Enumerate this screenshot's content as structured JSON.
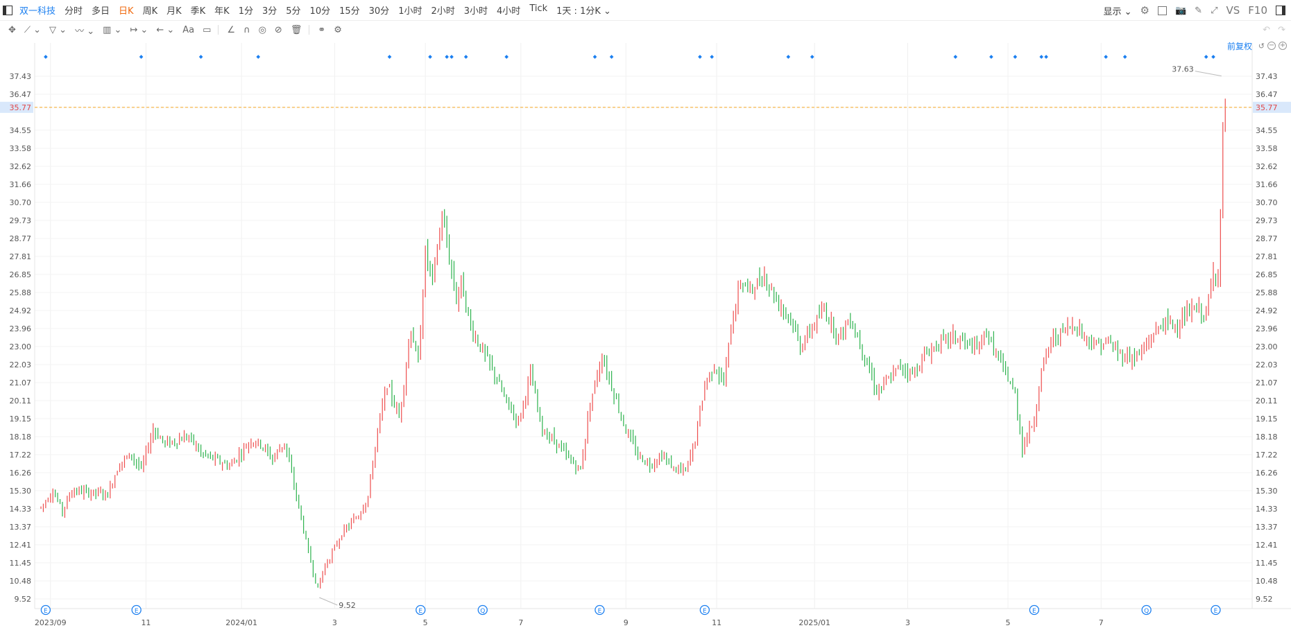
{
  "toolbar": {
    "stock_name": "双一科技",
    "timeframes": [
      "分时",
      "多日",
      "日K",
      "周K",
      "月K",
      "季K",
      "年K",
      "1分",
      "3分",
      "5分",
      "10分",
      "15分",
      "30分",
      "1小时",
      "2小时",
      "3小时",
      "4小时",
      "Tick"
    ],
    "active_timeframe": "日K",
    "period_select": "1天 : 1分K",
    "display_label": "显示",
    "vs_label": "VS",
    "f10_label": "F10"
  },
  "adjust_label": "前复权",
  "colors": {
    "up": "#ee4d4d",
    "down": "#2bb24c",
    "accent": "#1b7ff0",
    "crosshair": "#f5a623"
  },
  "chart_data": {
    "type": "ohlc",
    "title": "",
    "xlabel": "",
    "ylabel": "",
    "ylim": [
      9.52,
      37.63
    ],
    "y_ticks": [
      "37.43",
      "36.47",
      "35.77",
      "34.55",
      "33.58",
      "32.62",
      "31.66",
      "30.70",
      "29.73",
      "28.77",
      "27.81",
      "26.85",
      "25.88",
      "24.92",
      "23.96",
      "23.00",
      "22.03",
      "21.07",
      "20.11",
      "19.15",
      "18.18",
      "17.22",
      "16.26",
      "15.30",
      "14.33",
      "13.37",
      "12.41",
      "11.45",
      "10.48",
      "9.52"
    ],
    "x_tick_labels": [
      {
        "label": "2023/09",
        "bar": 4
      },
      {
        "label": "11",
        "bar": 44
      },
      {
        "label": "2024/01",
        "bar": 84
      },
      {
        "label": "3",
        "bar": 123
      },
      {
        "label": "5",
        "bar": 161
      },
      {
        "label": "7",
        "bar": 201
      },
      {
        "label": "9",
        "bar": 245
      },
      {
        "label": "11",
        "bar": 283
      },
      {
        "label": "2025/01",
        "bar": 324
      },
      {
        "label": "3",
        "bar": 363
      },
      {
        "label": "5",
        "bar": 405
      },
      {
        "label": "7",
        "bar": 444
      }
    ],
    "current_price": "35.77",
    "high_label": "37.63",
    "low_label": "9.52",
    "event_markers": [
      {
        "bar": 2,
        "letter": "E"
      },
      {
        "bar": 40,
        "letter": "E"
      },
      {
        "bar": 159,
        "letter": "E"
      },
      {
        "bar": 185,
        "letter": "Q"
      },
      {
        "bar": 234,
        "letter": "E"
      },
      {
        "bar": 278,
        "letter": "E"
      },
      {
        "bar": 416,
        "letter": "E"
      },
      {
        "bar": 463,
        "letter": "Q"
      },
      {
        "bar": 492,
        "letter": "E"
      }
    ],
    "dot_markers": [
      2,
      42,
      67,
      91,
      146,
      163,
      170,
      172,
      178,
      195,
      232,
      239,
      276,
      281,
      313,
      323,
      383,
      398,
      408,
      419,
      421,
      446,
      454,
      488,
      491
    ],
    "anchors": [
      [
        0,
        14.4
      ],
      [
        5,
        15.3
      ],
      [
        9,
        14.2
      ],
      [
        13,
        15.3
      ],
      [
        28,
        15.1
      ],
      [
        33,
        16.8
      ],
      [
        38,
        17.2
      ],
      [
        42,
        16.4
      ],
      [
        47,
        18.6
      ],
      [
        52,
        17.8
      ],
      [
        62,
        18.2
      ],
      [
        67,
        17.3
      ],
      [
        79,
        16.6
      ],
      [
        88,
        18.0
      ],
      [
        92,
        17.8
      ],
      [
        97,
        17.0
      ],
      [
        102,
        17.9
      ],
      [
        105,
        16.2
      ],
      [
        108,
        14.4
      ],
      [
        112,
        12.0
      ],
      [
        116,
        10.0
      ],
      [
        118,
        11.0
      ],
      [
        126,
        13.0
      ],
      [
        133,
        14.0
      ],
      [
        137,
        15.0
      ],
      [
        141,
        18.5
      ],
      [
        145,
        21.0
      ],
      [
        150,
        19.2
      ],
      [
        155,
        24.0
      ],
      [
        158,
        22.0
      ],
      [
        161,
        28.0
      ],
      [
        164,
        26.5
      ],
      [
        168,
        30.0
      ],
      [
        174,
        25.5
      ],
      [
        176,
        26.5
      ],
      [
        180,
        24.0
      ],
      [
        184,
        23.0
      ],
      [
        190,
        21.5
      ],
      [
        195,
        20.0
      ],
      [
        200,
        19.0
      ],
      [
        205,
        21.5
      ],
      [
        210,
        18.5
      ],
      [
        215,
        18.0
      ],
      [
        221,
        17.0
      ],
      [
        226,
        16.4
      ],
      [
        230,
        20.0
      ],
      [
        235,
        22.5
      ],
      [
        240,
        20.5
      ],
      [
        245,
        18.5
      ],
      [
        250,
        17.2
      ],
      [
        255,
        16.7
      ],
      [
        260,
        17.2
      ],
      [
        265,
        16.5
      ],
      [
        270,
        16.3
      ],
      [
        274,
        18.0
      ],
      [
        278,
        21.0
      ],
      [
        282,
        22.0
      ],
      [
        286,
        21.0
      ],
      [
        289,
        24.0
      ],
      [
        293,
        26.5
      ],
      [
        297,
        26.0
      ],
      [
        303,
        26.8
      ],
      [
        308,
        25.5
      ],
      [
        314,
        24.5
      ],
      [
        318,
        23.0
      ],
      [
        323,
        24.0
      ],
      [
        328,
        25.0
      ],
      [
        334,
        23.5
      ],
      [
        339,
        24.5
      ],
      [
        345,
        22.5
      ],
      [
        350,
        20.6
      ],
      [
        355,
        21.2
      ],
      [
        360,
        22.0
      ],
      [
        365,
        21.5
      ],
      [
        370,
        22.5
      ],
      [
        376,
        23.2
      ],
      [
        382,
        23.5
      ],
      [
        387,
        23.2
      ],
      [
        392,
        22.8
      ],
      [
        396,
        23.8
      ],
      [
        400,
        22.6
      ],
      [
        405,
        21.3
      ],
      [
        408,
        20.4
      ],
      [
        411,
        17.6
      ],
      [
        414,
        18.5
      ],
      [
        416,
        19.1
      ],
      [
        419,
        21.7
      ],
      [
        423,
        23.3
      ],
      [
        428,
        23.8
      ],
      [
        433,
        24.2
      ],
      [
        438,
        23.4
      ],
      [
        442,
        23.1
      ],
      [
        447,
        23.2
      ],
      [
        452,
        22.6
      ],
      [
        457,
        22.4
      ],
      [
        462,
        22.8
      ],
      [
        466,
        23.7
      ],
      [
        470,
        24.3
      ],
      [
        475,
        24.1
      ],
      [
        480,
        24.7
      ],
      [
        484,
        25.0
      ],
      [
        488,
        24.7
      ],
      [
        491,
        26.9
      ],
      [
        493,
        27.0
      ],
      [
        494,
        30.0
      ],
      [
        495,
        34.5
      ],
      [
        496,
        35.77
      ]
    ]
  }
}
